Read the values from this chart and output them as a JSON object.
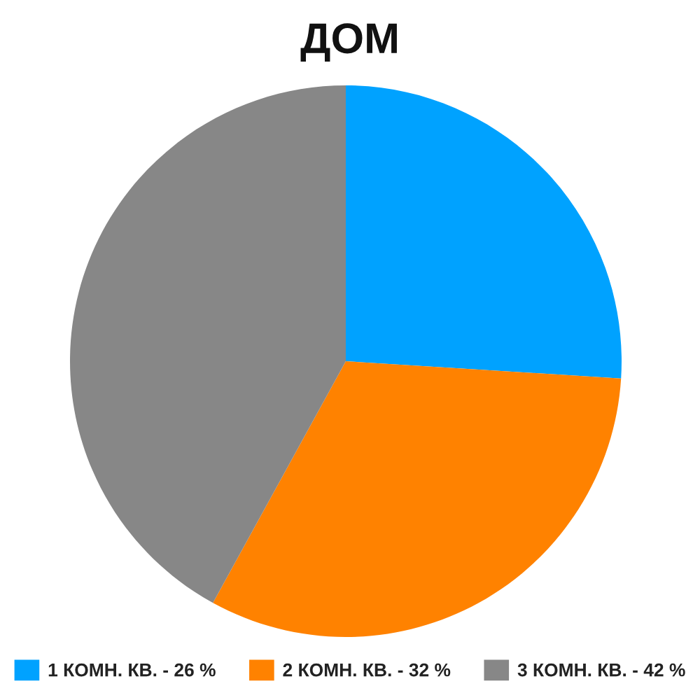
{
  "chart_data": {
    "type": "pie",
    "title": "ДОМ",
    "categories": [
      "1 КОМН. КВ. - 26 %",
      "2 КОМН. КВ. - 32 %",
      "3 КОМН. КВ. - 42 %"
    ],
    "values": [
      26,
      32,
      42
    ],
    "colors": [
      "#00a2ff",
      "#ff8200",
      "#878787"
    ],
    "legend": "bottom"
  }
}
